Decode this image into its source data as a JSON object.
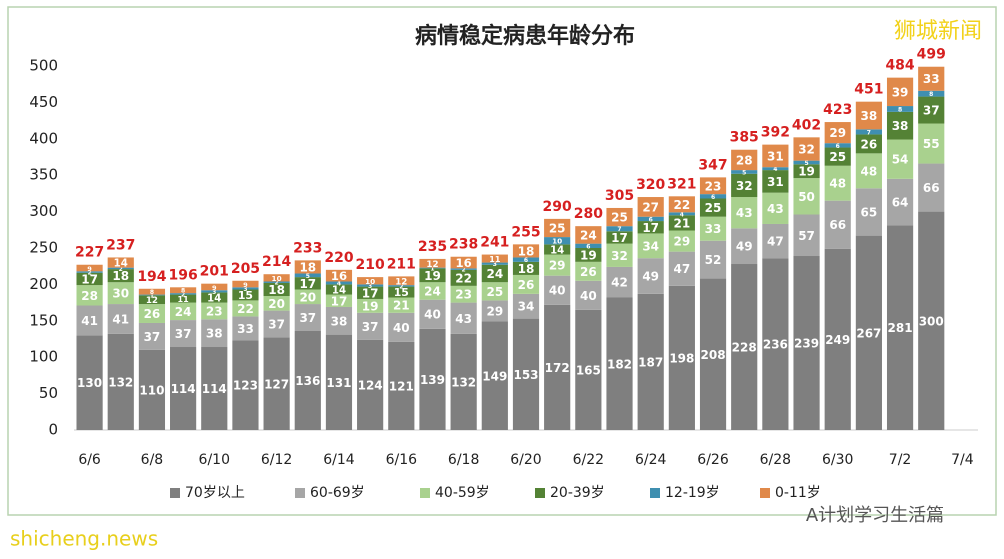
{
  "chart_data": {
    "type": "stacked_bar",
    "title": "病情稳定病患年龄分布",
    "categories": [
      "6/6",
      null,
      "6/8",
      null,
      "6/10",
      null,
      "6/12",
      null,
      "6/14",
      null,
      "6/16",
      null,
      "6/18",
      null,
      "6/20",
      null,
      "6/22",
      null,
      "6/24",
      null,
      "6/26",
      null,
      "6/28",
      null,
      "6/30",
      null,
      "7/2",
      null,
      "7/4"
    ],
    "series": [
      {
        "name": "70岁以上",
        "color": "#7f7f7f",
        "values": [
          130,
          132,
          110,
          114,
          114,
          123,
          127,
          136,
          131,
          124,
          121,
          139,
          132,
          149,
          153,
          172,
          165,
          182,
          187,
          198,
          208,
          228,
          236,
          239,
          249,
          267,
          281,
          300,
          null
        ]
      },
      {
        "name": "60-69岁",
        "color": "#a6a6a6",
        "values": [
          41,
          41,
          37,
          37,
          38,
          33,
          37,
          37,
          38,
          37,
          40,
          40,
          43,
          29,
          34,
          40,
          40,
          42,
          49,
          47,
          52,
          49,
          47,
          57,
          66,
          65,
          64,
          66,
          null
        ]
      },
      {
        "name": "40-59岁",
        "color": "#a9d18e",
        "values": [
          28,
          30,
          26,
          24,
          23,
          22,
          20,
          20,
          17,
          19,
          21,
          24,
          23,
          25,
          26,
          29,
          26,
          32,
          34,
          29,
          33,
          43,
          43,
          50,
          48,
          48,
          54,
          55,
          null
        ]
      },
      {
        "name": "20-39岁",
        "color": "#548235",
        "values": [
          17,
          18,
          12,
          11,
          14,
          15,
          18,
          17,
          14,
          17,
          15,
          19,
          22,
          24,
          18,
          14,
          19,
          17,
          17,
          21,
          25,
          32,
          31,
          19,
          25,
          26,
          38,
          37,
          null
        ]
      },
      {
        "name": "12-19岁",
        "color": "#3f8fb0",
        "values": [
          2,
          2,
          1,
          2,
          3,
          3,
          2,
          5,
          4,
          3,
          2,
          1,
          2,
          3,
          6,
          10,
          6,
          7,
          6,
          4,
          6,
          5,
          4,
          5,
          6,
          7,
          8,
          8,
          null
        ]
      },
      {
        "name": "0-11岁",
        "color": "#e0894a",
        "values": [
          9,
          14,
          8,
          8,
          9,
          9,
          10,
          18,
          16,
          10,
          12,
          12,
          16,
          11,
          18,
          25,
          24,
          25,
          27,
          22,
          23,
          28,
          31,
          32,
          29,
          38,
          39,
          33,
          null
        ]
      }
    ],
    "totals": [
      227,
      237,
      194,
      196,
      201,
      205,
      214,
      233,
      220,
      210,
      211,
      235,
      238,
      241,
      255,
      290,
      280,
      305,
      320,
      321,
      347,
      385,
      392,
      402,
      423,
      451,
      484,
      499,
      null
    ],
    "ylim": [
      0,
      500
    ],
    "yticks": [
      0,
      50,
      100,
      150,
      200,
      250,
      300,
      350,
      400,
      450,
      500
    ],
    "grid": false,
    "legend": "bottom"
  },
  "watermarks": [
    "狮城新闻",
    "shicheng.news",
    "A计划学习生活篇"
  ]
}
